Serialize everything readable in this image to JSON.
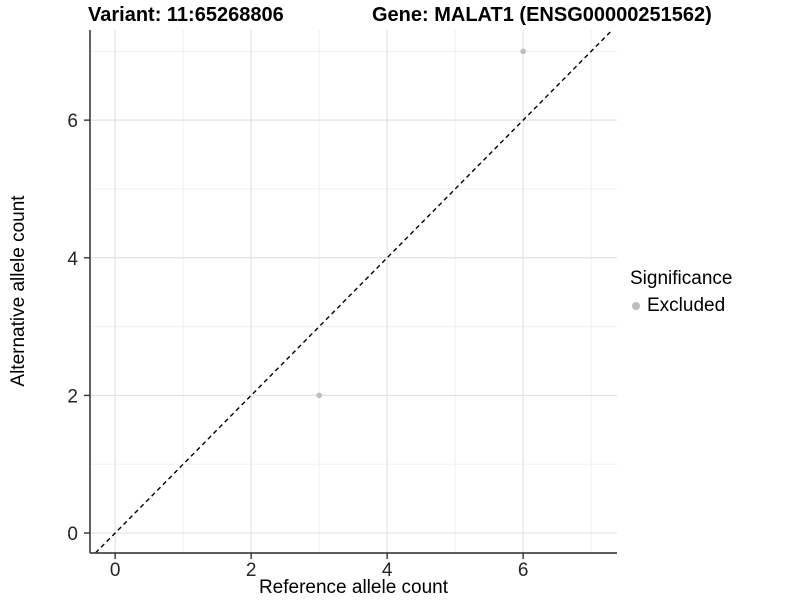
{
  "titles": {
    "variant": "Variant: 11:65268806",
    "gene": "Gene: MALAT1 (ENSG00000251562)"
  },
  "axes": {
    "x_label": "Reference allele count",
    "y_label": "Alternative allele count"
  },
  "legend": {
    "title": "Significance",
    "items": [
      {
        "label": "Excluded",
        "color": "#bdbdbd"
      }
    ]
  },
  "colors": {
    "background": "#ffffff",
    "grid_major": "#e3e3e3",
    "grid_minor": "#f0f0f0",
    "axis_line": "#474747",
    "tick_mark": "#333333",
    "tick_label": "#262626",
    "identity_line": "#000000",
    "point": "#bdbdbd"
  },
  "chart_data": {
    "type": "scatter",
    "title": "Variant: 11:65268806 | Gene: MALAT1 (ENSG00000251562)",
    "xlabel": "Reference allele count",
    "ylabel": "Alternative allele count",
    "xlim": [
      -0.37,
      7.38
    ],
    "ylim": [
      -0.29,
      7.31
    ],
    "x_ticks": [
      0,
      2,
      4,
      6
    ],
    "y_ticks": [
      0,
      2,
      4,
      6
    ],
    "x_minor_ticks": [
      1,
      3,
      5,
      7
    ],
    "y_minor_ticks": [
      1,
      3,
      5,
      7
    ],
    "grid": true,
    "legend_position": "right",
    "legend_title": "Significance",
    "series": [
      {
        "name": "Excluded",
        "color": "#bdbdbd",
        "points": [
          {
            "x": 3,
            "y": 2
          },
          {
            "x": 6,
            "y": 7
          }
        ]
      }
    ],
    "reference_line": {
      "kind": "identity",
      "equation": "y = x",
      "style": "dashed",
      "color": "#000000"
    }
  }
}
